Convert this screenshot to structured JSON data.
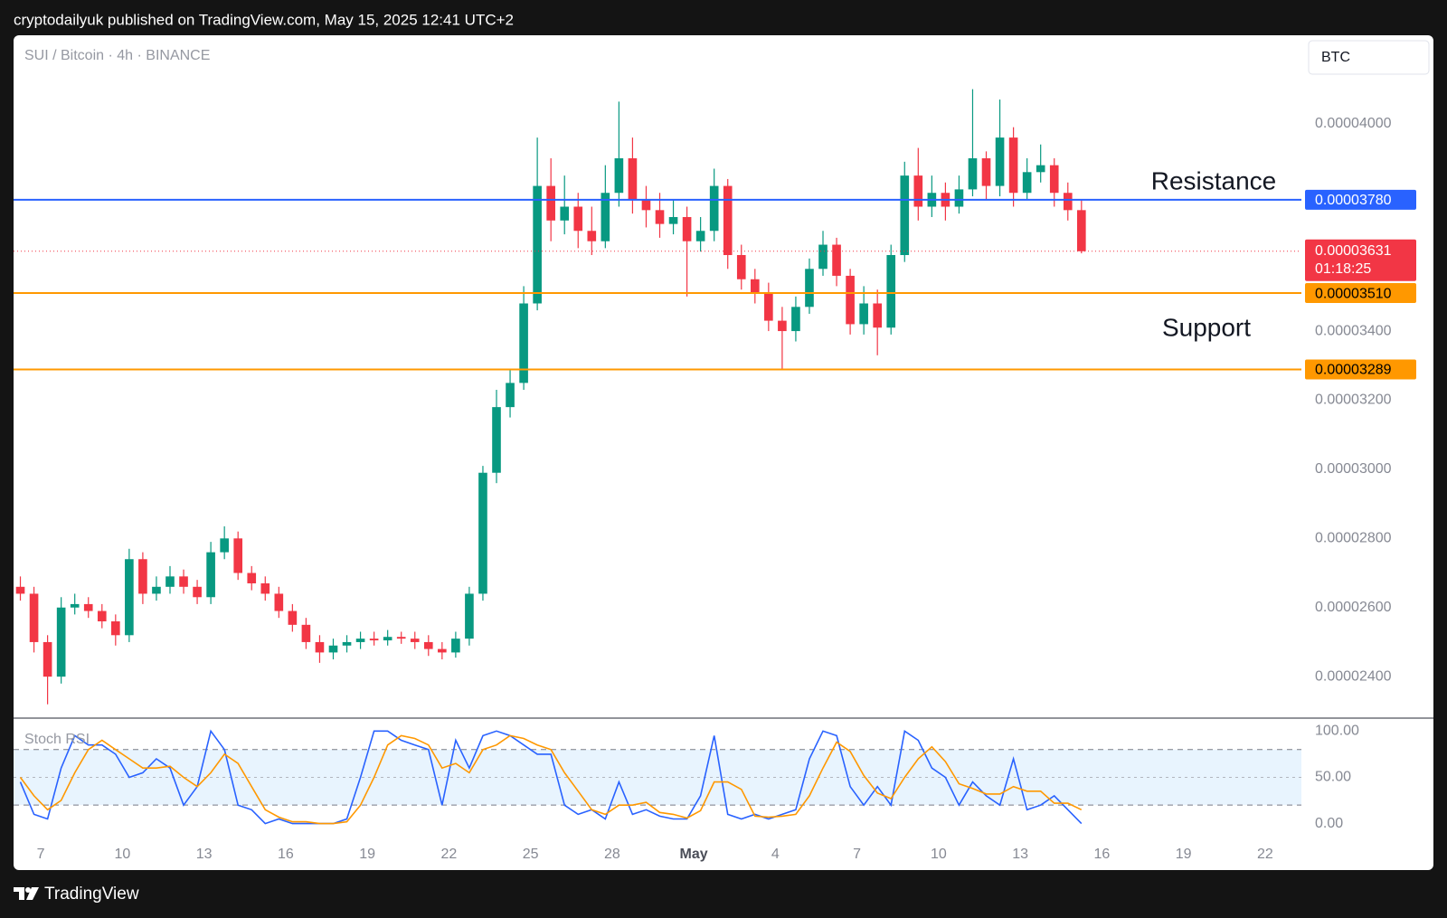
{
  "header": "cryptodailyuk published on TradingView.com, May 15, 2025 12:41 UTC+2",
  "footer": "TradingView",
  "chart_data": [
    {
      "type": "candlestick",
      "title": "SUI / Bitcoin · 4h · BINANCE",
      "currency": "BTC",
      "up_color": "#089981",
      "down_color": "#f23645",
      "x": [
        "04-06 00:00",
        "04-06 12:00",
        "04-07 00:00",
        "04-07 12:00",
        "04-08 00:00",
        "04-08 12:00",
        "04-09 00:00",
        "04-09 12:00",
        "04-10 00:00",
        "04-10 12:00",
        "04-11 00:00",
        "04-11 12:00",
        "04-12 00:00",
        "04-12 12:00",
        "04-13 00:00",
        "04-13 12:00",
        "04-14 00:00",
        "04-14 12:00",
        "04-15 00:00",
        "04-15 12:00",
        "04-16 00:00",
        "04-16 12:00",
        "04-17 00:00",
        "04-17 12:00",
        "04-18 00:00",
        "04-18 12:00",
        "04-19 00:00",
        "04-19 12:00",
        "04-20 00:00",
        "04-20 12:00",
        "04-21 00:00",
        "04-21 12:00",
        "04-22 00:00",
        "04-22 12:00",
        "04-23 00:00",
        "04-23 12:00",
        "04-24 00:00",
        "04-24 12:00",
        "04-25 00:00",
        "04-25 12:00",
        "04-26 00:00",
        "04-26 12:00",
        "04-27 00:00",
        "04-27 12:00",
        "04-28 00:00",
        "04-28 12:00",
        "04-29 00:00",
        "04-29 12:00",
        "04-30 00:00",
        "04-30 12:00",
        "05-01 00:00",
        "05-01 12:00",
        "05-02 00:00",
        "05-02 12:00",
        "05-03 00:00",
        "05-03 12:00",
        "05-04 00:00",
        "05-04 12:00",
        "05-05 00:00",
        "05-05 12:00",
        "05-06 00:00",
        "05-06 12:00",
        "05-07 00:00",
        "05-07 12:00",
        "05-08 00:00",
        "05-08 12:00",
        "05-09 00:00",
        "05-09 12:00",
        "05-10 00:00",
        "05-10 12:00",
        "05-11 00:00",
        "05-11 12:00",
        "05-12 00:00",
        "05-12 12:00",
        "05-13 00:00",
        "05-13 12:00",
        "05-14 00:00",
        "05-14 12:00",
        "05-15 00:00"
      ],
      "open": [
        2.66e-05,
        2.64e-05,
        2.5e-05,
        2.4e-05,
        2.6e-05,
        2.61e-05,
        2.59e-05,
        2.56e-05,
        2.52e-05,
        2.74e-05,
        2.64e-05,
        2.66e-05,
        2.69e-05,
        2.66e-05,
        2.63e-05,
        2.76e-05,
        2.8e-05,
        2.7e-05,
        2.67e-05,
        2.64e-05,
        2.59e-05,
        2.55e-05,
        2.5e-05,
        2.47e-05,
        2.49e-05,
        2.5e-05,
        2.51e-05,
        2.505e-05,
        2.515e-05,
        2.51e-05,
        2.5e-05,
        2.48e-05,
        2.47e-05,
        2.51e-05,
        2.64e-05,
        2.99e-05,
        3.18e-05,
        3.25e-05,
        3.48e-05,
        3.82e-05,
        3.72e-05,
        3.76e-05,
        3.69e-05,
        3.66e-05,
        3.8e-05,
        3.9e-05,
        3.78e-05,
        3.75e-05,
        3.71e-05,
        3.73e-05,
        3.66e-05,
        3.69e-05,
        3.82e-05,
        3.62e-05,
        3.55e-05,
        3.51e-05,
        3.43e-05,
        3.4e-05,
        3.47e-05,
        3.58e-05,
        3.65e-05,
        3.56e-05,
        3.42e-05,
        3.48e-05,
        3.41e-05,
        3.62e-05,
        3.85e-05,
        3.76e-05,
        3.8e-05,
        3.76e-05,
        3.81e-05,
        3.9e-05,
        3.82e-05,
        3.96e-05,
        3.8e-05,
        3.86e-05,
        3.88e-05,
        3.8e-05,
        3.75e-05
      ],
      "high": [
        2.69e-05,
        2.66e-05,
        2.52e-05,
        2.63e-05,
        2.64e-05,
        2.63e-05,
        2.61e-05,
        2.58e-05,
        2.77e-05,
        2.76e-05,
        2.69e-05,
        2.72e-05,
        2.71e-05,
        2.68e-05,
        2.79e-05,
        2.835e-05,
        2.82e-05,
        2.72e-05,
        2.69e-05,
        2.66e-05,
        2.61e-05,
        2.57e-05,
        2.52e-05,
        2.51e-05,
        2.52e-05,
        2.53e-05,
        2.53e-05,
        2.535e-05,
        2.53e-05,
        2.53e-05,
        2.52e-05,
        2.5e-05,
        2.53e-05,
        2.66e-05,
        3.01e-05,
        3.23e-05,
        3.29e-05,
        3.53e-05,
        3.96e-05,
        3.9e-05,
        3.85e-05,
        3.8e-05,
        3.76e-05,
        3.88e-05,
        4.064e-05,
        3.96e-05,
        3.82e-05,
        3.8e-05,
        3.78e-05,
        3.76e-05,
        3.73e-05,
        3.87e-05,
        3.84e-05,
        3.65e-05,
        3.58e-05,
        3.54e-05,
        3.47e-05,
        3.5e-05,
        3.61e-05,
        3.69e-05,
        3.67e-05,
        3.58e-05,
        3.53e-05,
        3.52e-05,
        3.65e-05,
        3.89e-05,
        3.93e-05,
        3.85e-05,
        3.83e-05,
        3.85e-05,
        4.1e-05,
        3.92e-05,
        4.07e-05,
        3.99e-05,
        3.9e-05,
        3.94e-05,
        3.9e-05,
        3.83e-05,
        3.78e-05
      ],
      "low": [
        2.62e-05,
        2.47e-05,
        2.32e-05,
        2.38e-05,
        2.58e-05,
        2.57e-05,
        2.54e-05,
        2.49e-05,
        2.5e-05,
        2.61e-05,
        2.62e-05,
        2.64e-05,
        2.64e-05,
        2.61e-05,
        2.61e-05,
        2.74e-05,
        2.68e-05,
        2.65e-05,
        2.62e-05,
        2.57e-05,
        2.53e-05,
        2.48e-05,
        2.44e-05,
        2.45e-05,
        2.47e-05,
        2.48e-05,
        2.49e-05,
        2.49e-05,
        2.495e-05,
        2.48e-05,
        2.46e-05,
        2.45e-05,
        2.455e-05,
        2.49e-05,
        2.62e-05,
        2.96e-05,
        3.15e-05,
        3.23e-05,
        3.46e-05,
        3.66e-05,
        3.68e-05,
        3.64e-05,
        3.62e-05,
        3.64e-05,
        3.76e-05,
        3.74e-05,
        3.7e-05,
        3.67e-05,
        3.68e-05,
        3.5e-05,
        3.63e-05,
        3.66e-05,
        3.58e-05,
        3.52e-05,
        3.48e-05,
        3.4e-05,
        3.29e-05,
        3.37e-05,
        3.45e-05,
        3.56e-05,
        3.53e-05,
        3.39e-05,
        3.39e-05,
        3.33e-05,
        3.39e-05,
        3.6e-05,
        3.72e-05,
        3.73e-05,
        3.72e-05,
        3.74e-05,
        3.79e-05,
        3.78e-05,
        3.79e-05,
        3.76e-05,
        3.78e-05,
        3.83e-05,
        3.76e-05,
        3.72e-05,
        3.625e-05
      ],
      "close": [
        2.64e-05,
        2.5e-05,
        2.4e-05,
        2.6e-05,
        2.61e-05,
        2.59e-05,
        2.56e-05,
        2.52e-05,
        2.74e-05,
        2.64e-05,
        2.66e-05,
        2.69e-05,
        2.66e-05,
        2.63e-05,
        2.76e-05,
        2.8e-05,
        2.7e-05,
        2.67e-05,
        2.64e-05,
        2.59e-05,
        2.55e-05,
        2.5e-05,
        2.47e-05,
        2.49e-05,
        2.5e-05,
        2.51e-05,
        2.505e-05,
        2.515e-05,
        2.51e-05,
        2.5e-05,
        2.48e-05,
        2.47e-05,
        2.51e-05,
        2.64e-05,
        2.99e-05,
        3.18e-05,
        3.25e-05,
        3.48e-05,
        3.82e-05,
        3.72e-05,
        3.76e-05,
        3.69e-05,
        3.66e-05,
        3.8e-05,
        3.9e-05,
        3.78e-05,
        3.75e-05,
        3.71e-05,
        3.73e-05,
        3.66e-05,
        3.69e-05,
        3.82e-05,
        3.62e-05,
        3.55e-05,
        3.51e-05,
        3.43e-05,
        3.4e-05,
        3.47e-05,
        3.58e-05,
        3.65e-05,
        3.56e-05,
        3.42e-05,
        3.48e-05,
        3.41e-05,
        3.62e-05,
        3.85e-05,
        3.76e-05,
        3.8e-05,
        3.76e-05,
        3.81e-05,
        3.9e-05,
        3.82e-05,
        3.96e-05,
        3.8e-05,
        3.86e-05,
        3.88e-05,
        3.8e-05,
        3.75e-05,
        3.631e-05
      ],
      "xlim": [
        "04-06 00:00",
        "05-23 08:00"
      ],
      "xticks": [
        {
          "value": "04-07 00:00",
          "label": "7"
        },
        {
          "value": "04-10 00:00",
          "label": "10"
        },
        {
          "value": "04-13 00:00",
          "label": "13"
        },
        {
          "value": "04-16 00:00",
          "label": "16"
        },
        {
          "value": "04-19 00:00",
          "label": "19"
        },
        {
          "value": "04-22 00:00",
          "label": "22"
        },
        {
          "value": "04-25 00:00",
          "label": "25"
        },
        {
          "value": "04-28 00:00",
          "label": "28"
        },
        {
          "value": "05-01 00:00",
          "label": "May"
        },
        {
          "value": "05-04 00:00",
          "label": "4"
        },
        {
          "value": "05-07 00:00",
          "label": "7"
        },
        {
          "value": "05-10 00:00",
          "label": "10"
        },
        {
          "value": "05-13 00:00",
          "label": "13"
        },
        {
          "value": "05-16 00:00",
          "label": "16"
        },
        {
          "value": "05-19 00:00",
          "label": "19"
        },
        {
          "value": "05-22 00:00",
          "label": "22"
        }
      ],
      "ylim": [
        2.28e-05,
        4.256e-05
      ],
      "yticks": [
        {
          "value": 4e-05,
          "label": "0.00004000"
        },
        {
          "value": 3.4e-05,
          "label": "0.00003400"
        },
        {
          "value": 3.2e-05,
          "label": "0.00003200"
        },
        {
          "value": 3e-05,
          "label": "0.00003000"
        },
        {
          "value": 2.8e-05,
          "label": "0.00002800"
        },
        {
          "value": 2.6e-05,
          "label": "0.00002600"
        },
        {
          "value": 2.4e-05,
          "label": "0.00002400"
        }
      ],
      "levels": [
        {
          "value": 3.78e-05,
          "label": "0.00003780",
          "color": "#2962ff",
          "text_color": "#ffffff"
        },
        {
          "value": 3.51e-05,
          "label": "0.00003510",
          "color": "#ff9800",
          "text_color": "#000000"
        },
        {
          "value": 3.289e-05,
          "label": "0.00003289",
          "color": "#ff9800",
          "text_color": "#000000"
        }
      ],
      "current_price": {
        "value": 3.631e-05,
        "label": "0.00003631",
        "countdown": "01:18:25",
        "color": "#f23645"
      },
      "annotations": [
        "Resistance",
        "Support"
      ]
    },
    {
      "type": "line",
      "title": "Stoch RSI",
      "series": [
        {
          "color": "#2962ff",
          "values": [
            45,
            10,
            5,
            60,
            95,
            85,
            85,
            75,
            50,
            55,
            70,
            60,
            20,
            40,
            100,
            80,
            20,
            15,
            0,
            5,
            0,
            0,
            0,
            0,
            5,
            50,
            100,
            100,
            90,
            85,
            80,
            20,
            90,
            60,
            95,
            100,
            95,
            85,
            75,
            75,
            20,
            10,
            15,
            5,
            45,
            10,
            15,
            8,
            5,
            5,
            30,
            95,
            10,
            5,
            10,
            5,
            10,
            15,
            70,
            100,
            95,
            40,
            20,
            40,
            20,
            100,
            90,
            60,
            50,
            20,
            45,
            30,
            20,
            70,
            15,
            20,
            30,
            15,
            0
          ]
        },
        {
          "color": "#ff9800",
          "values": [
            50,
            30,
            15,
            25,
            55,
            80,
            90,
            80,
            70,
            60,
            60,
            62,
            50,
            40,
            55,
            75,
            65,
            40,
            15,
            7,
            2,
            2,
            0,
            0,
            2,
            20,
            50,
            85,
            95,
            92,
            85,
            60,
            65,
            55,
            80,
            85,
            95,
            92,
            85,
            80,
            55,
            35,
            15,
            10,
            20,
            20,
            23,
            12,
            10,
            6,
            14,
            45,
            45,
            37,
            8,
            7,
            8,
            10,
            30,
            60,
            88,
            78,
            52,
            33,
            27,
            50,
            70,
            83,
            67,
            43,
            38,
            32,
            32,
            40,
            35,
            35,
            22,
            22,
            15
          ]
        }
      ],
      "ylim": [
        -17,
        114
      ],
      "yticks": [
        {
          "value": 100,
          "label": "100.00"
        },
        {
          "value": 50,
          "label": "50.00"
        },
        {
          "value": 0,
          "label": "0.00"
        }
      ],
      "band": [
        20,
        80
      ],
      "band_color": "#2196f3",
      "midline": 50
    }
  ]
}
